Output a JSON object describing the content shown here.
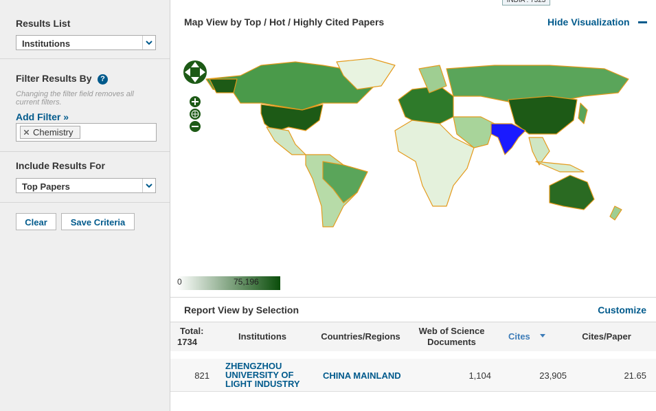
{
  "sidebar": {
    "results_list": {
      "label": "Results List",
      "selected": "Institutions"
    },
    "filter": {
      "title": "Filter Results By",
      "help_icon": "?",
      "note": "Changing the filter field removes all current filters.",
      "add_filter": "Add Filter »",
      "chips": [
        "Chemistry"
      ]
    },
    "include": {
      "label": "Include Results For",
      "selected": "Top Papers"
    },
    "buttons": [
      "Clear",
      "Save Criteria"
    ]
  },
  "map_panel": {
    "title": "Map View by Top / Hot / Highly Cited Papers",
    "hide": "Hide Visualization",
    "tooltip": "INDIA : 7323",
    "legend": {
      "min": "0",
      "max": "75,196"
    }
  },
  "report": {
    "title": "Report View by Selection",
    "customize": "Customize",
    "total_label": "Total:",
    "total": "1734",
    "columns": [
      "Institutions",
      "Countries/Regions",
      "Web of Science Documents",
      "Cites",
      "Cites/Paper"
    ],
    "rows": [
      [
        "821",
        "ZHENGZHOU UNIVERSITY OF LIGHT INDUSTRY",
        "CHINA MAINLAND",
        "1,104",
        "23,905",
        "21.65"
      ]
    ]
  }
}
